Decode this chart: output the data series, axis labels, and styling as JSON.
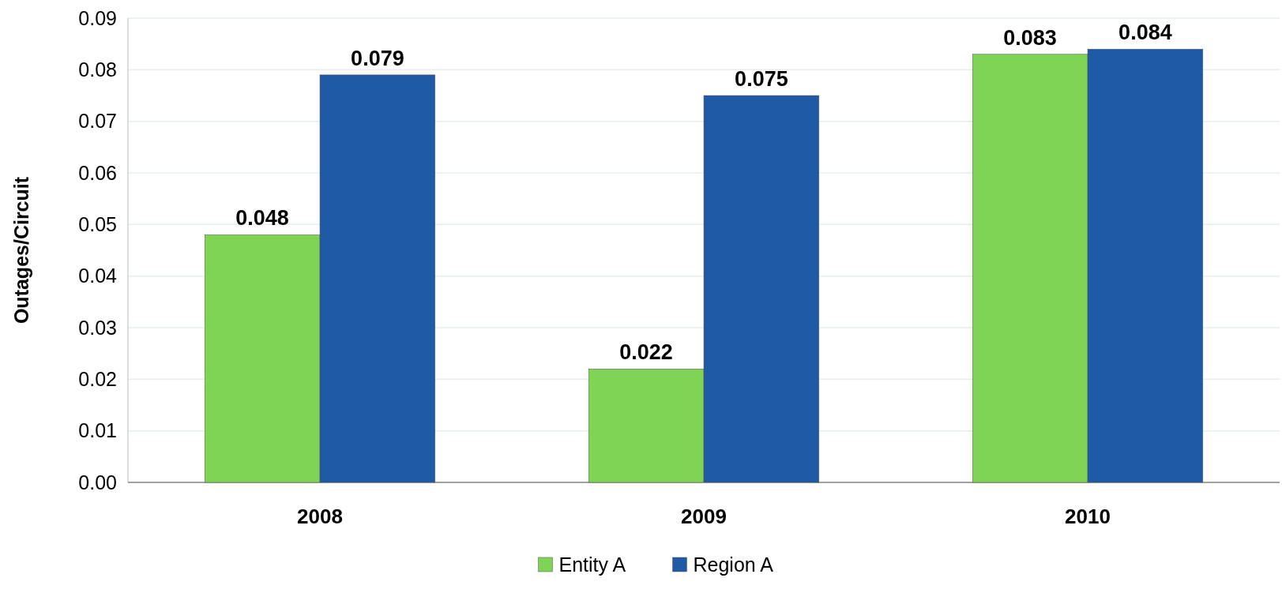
{
  "chart_data": {
    "type": "bar",
    "ylabel": "Outages/Circuit",
    "categories": [
      "2008",
      "2009",
      "2010"
    ],
    "series": [
      {
        "name": "Entity A",
        "color": "#7fd456",
        "values": [
          0.048,
          0.022,
          0.083
        ]
      },
      {
        "name": "Region A",
        "color": "#1f5aa6",
        "values": [
          0.079,
          0.075,
          0.084
        ]
      }
    ],
    "ylim": [
      0,
      0.09
    ],
    "yticks": [
      {
        "value": 0,
        "label": "0.00"
      },
      0.01,
      0.02,
      0.03,
      0.04,
      0.05,
      0.06,
      0.07,
      0.08,
      0.09
    ],
    "grid": "y",
    "legend": "bottom",
    "data_labels": true
  }
}
